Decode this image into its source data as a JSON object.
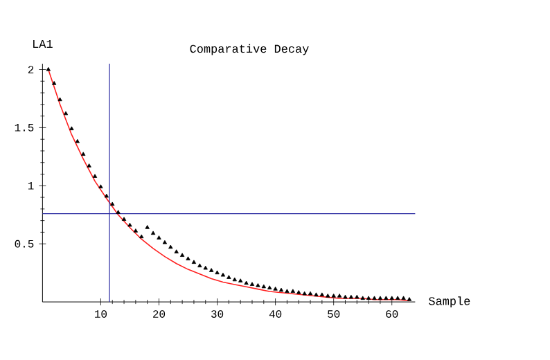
{
  "chart_data": {
    "type": "scatter",
    "title": "Comparative Decay",
    "xlabel": "Sample",
    "ylabel": "LA1",
    "xlim": [
      0,
      64
    ],
    "ylim": [
      0,
      2.05
    ],
    "xticks": [
      10,
      20,
      30,
      40,
      50,
      60
    ],
    "yticks": [
      0.5,
      1,
      1.5,
      2
    ],
    "series": [
      {
        "type": "scatter",
        "marker": "triangle",
        "color": "#000000",
        "x": [
          1,
          2,
          3,
          4,
          5,
          6,
          7,
          8,
          9,
          10,
          11,
          12,
          13,
          14,
          15,
          16,
          17,
          18,
          19,
          20,
          21,
          22,
          23,
          24,
          25,
          26,
          27,
          28,
          29,
          30,
          31,
          32,
          33,
          34,
          35,
          36,
          37,
          38,
          39,
          40,
          41,
          42,
          43,
          44,
          45,
          46,
          47,
          48,
          49,
          50,
          51,
          52,
          53,
          54,
          55,
          56,
          57,
          58,
          59,
          60,
          61,
          62,
          63
        ],
        "values": [
          2.0,
          1.88,
          1.74,
          1.62,
          1.49,
          1.38,
          1.27,
          1.17,
          1.08,
          0.99,
          0.91,
          0.84,
          0.77,
          0.71,
          0.66,
          0.61,
          0.56,
          0.64,
          0.59,
          0.55,
          0.51,
          0.47,
          0.43,
          0.4,
          0.37,
          0.34,
          0.31,
          0.29,
          0.27,
          0.25,
          0.23,
          0.21,
          0.19,
          0.18,
          0.16,
          0.15,
          0.14,
          0.13,
          0.12,
          0.11,
          0.1,
          0.09,
          0.09,
          0.08,
          0.07,
          0.07,
          0.06,
          0.06,
          0.05,
          0.05,
          0.05,
          0.04,
          0.04,
          0.04,
          0.03,
          0.03,
          0.03,
          0.03,
          0.03,
          0.03,
          0.03,
          0.03,
          0.02
        ]
      },
      {
        "type": "line",
        "color": "#ff2020",
        "x": [
          1,
          3,
          5,
          7,
          9,
          11,
          13,
          15,
          17,
          19,
          21,
          23,
          25,
          27,
          29,
          31,
          33,
          35,
          37,
          39,
          41,
          43,
          45,
          47,
          49,
          51,
          53,
          55,
          57,
          59,
          61,
          63
        ],
        "values": [
          2.0,
          1.7,
          1.44,
          1.23,
          1.04,
          0.89,
          0.75,
          0.64,
          0.54,
          0.46,
          0.39,
          0.33,
          0.28,
          0.24,
          0.2,
          0.17,
          0.15,
          0.13,
          0.11,
          0.09,
          0.08,
          0.07,
          0.06,
          0.05,
          0.04,
          0.03,
          0.03,
          0.03,
          0.02,
          0.02,
          0.02,
          0.01
        ]
      }
    ],
    "ref_lines": [
      {
        "axis": "x",
        "value": 11.5,
        "color": "#2828a0"
      },
      {
        "axis": "y",
        "value": 0.76,
        "color": "#2828a0"
      }
    ]
  }
}
